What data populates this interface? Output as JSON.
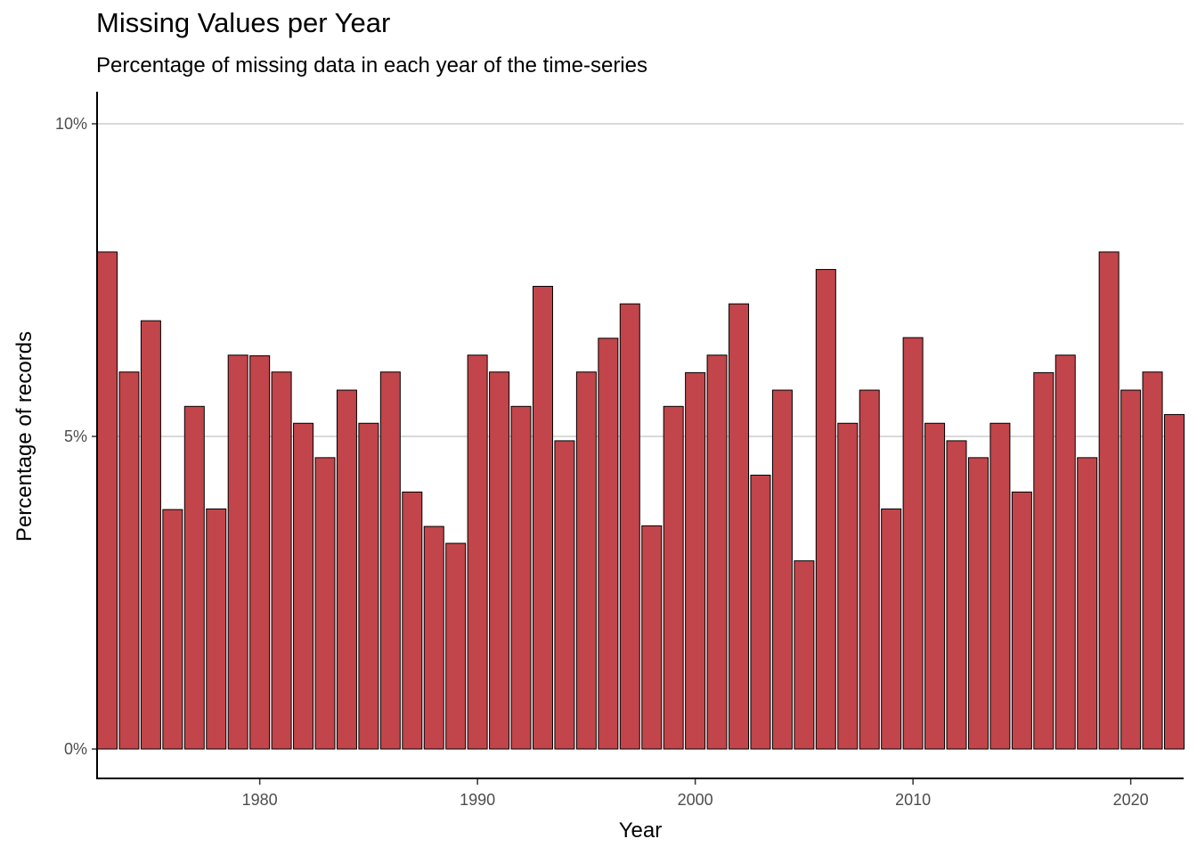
{
  "chart_data": {
    "type": "bar",
    "title": "Missing Values per Year",
    "subtitle": "Percentage of missing data in each year of the time-series",
    "xlabel": "Year",
    "ylabel": "Percentage of records",
    "x": [
      1973,
      1974,
      1975,
      1976,
      1977,
      1978,
      1979,
      1980,
      1981,
      1982,
      1983,
      1984,
      1985,
      1986,
      1987,
      1988,
      1989,
      1990,
      1991,
      1992,
      1993,
      1994,
      1995,
      1996,
      1997,
      1998,
      1999,
      2000,
      2001,
      2002,
      2003,
      2004,
      2005,
      2006,
      2007,
      2008,
      2009,
      2010,
      2011,
      2012,
      2013,
      2014,
      2015,
      2016,
      2017,
      2018,
      2019,
      2020,
      2021,
      2022
    ],
    "values": [
      7.95,
      6.03,
      6.85,
      3.83,
      5.48,
      3.84,
      6.3,
      6.29,
      6.03,
      5.21,
      4.66,
      5.74,
      5.21,
      6.03,
      4.11,
      3.56,
      3.29,
      6.3,
      6.03,
      5.48,
      7.4,
      4.93,
      6.03,
      6.57,
      7.12,
      3.57,
      5.48,
      6.02,
      6.3,
      7.12,
      4.38,
      5.74,
      3.01,
      7.67,
      5.21,
      5.74,
      3.84,
      6.58,
      5.21,
      4.93,
      4.66,
      5.21,
      4.11,
      6.02,
      6.3,
      4.66,
      7.95,
      5.74,
      6.03,
      5.35
    ],
    "ylim": [
      0,
      10
    ],
    "y_ticks": [
      0,
      5,
      10
    ],
    "y_tick_labels": [
      "0%",
      "5%",
      "10%"
    ],
    "x_ticks": [
      1980,
      1990,
      2000,
      2010,
      2020
    ],
    "x_tick_labels": [
      "1980",
      "1990",
      "2000",
      "2010",
      "2020"
    ],
    "grid": "horizontal-major",
    "legend": "none",
    "bar_color": "#c1454a",
    "bar_outline": "#000000"
  }
}
